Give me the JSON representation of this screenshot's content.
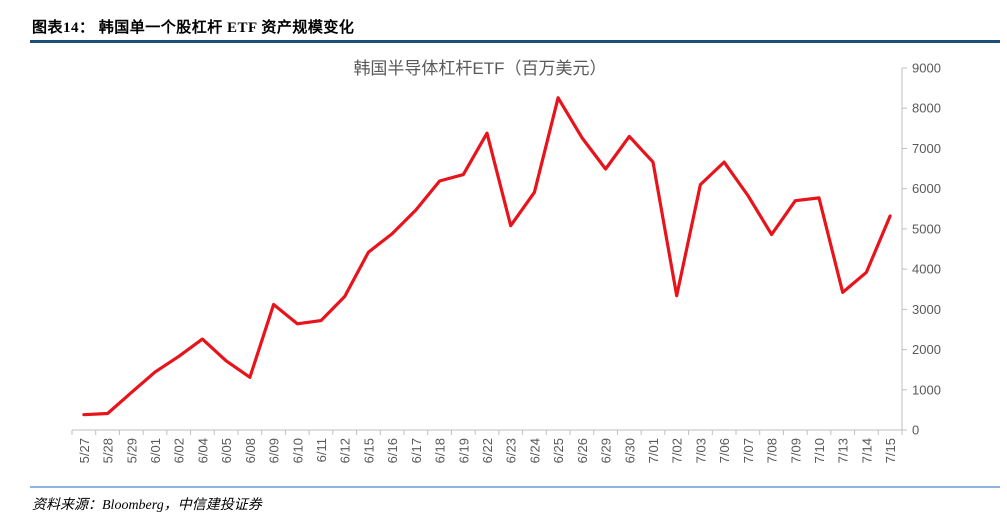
{
  "header": {
    "title": "图表14：  韩国单一个股杠杆 ETF 资产规模变化"
  },
  "source": "资料来源：Bloomberg，中信建投证券",
  "colors": {
    "line": "#e8141b",
    "header_rule": "#1f4e79",
    "footer_rule": "#8db4e2",
    "axis": "#bfbfbf",
    "text": "#595959"
  },
  "chart_data": {
    "type": "line",
    "title": "韩国半导体杠杆ETF（百万美元）",
    "xlabel": "",
    "ylabel": "",
    "ylim": [
      0,
      9000
    ],
    "y_ticks": [
      0,
      1000,
      2000,
      3000,
      4000,
      5000,
      6000,
      7000,
      8000,
      9000
    ],
    "y_axis_side": "right",
    "grid": false,
    "legend": "none",
    "categories": [
      "5/27",
      "5/28",
      "5/29",
      "6/01",
      "6/02",
      "6/04",
      "6/05",
      "6/08",
      "6/09",
      "6/10",
      "6/11",
      "6/12",
      "6/15",
      "6/16",
      "6/17",
      "6/18",
      "6/19",
      "6/22",
      "6/23",
      "6/24",
      "6/25",
      "6/26",
      "6/29",
      "6/30",
      "7/01",
      "7/02",
      "7/03",
      "7/06",
      "7/07",
      "7/08",
      "7/09",
      "7/10",
      "7/13",
      "7/14",
      "7/15"
    ],
    "series": [
      {
        "values": [
          380,
          410,
          930,
          1440,
          1830,
          2260,
          1720,
          1310,
          3120,
          2640,
          2720,
          3320,
          4420,
          4880,
          5470,
          6190,
          6350,
          7380,
          5080,
          5910,
          8260,
          7270,
          6490,
          7300,
          6660,
          3340,
          6100,
          6660,
          5830,
          4860,
          5700,
          5770,
          3420,
          3920,
          5320
        ]
      }
    ]
  }
}
